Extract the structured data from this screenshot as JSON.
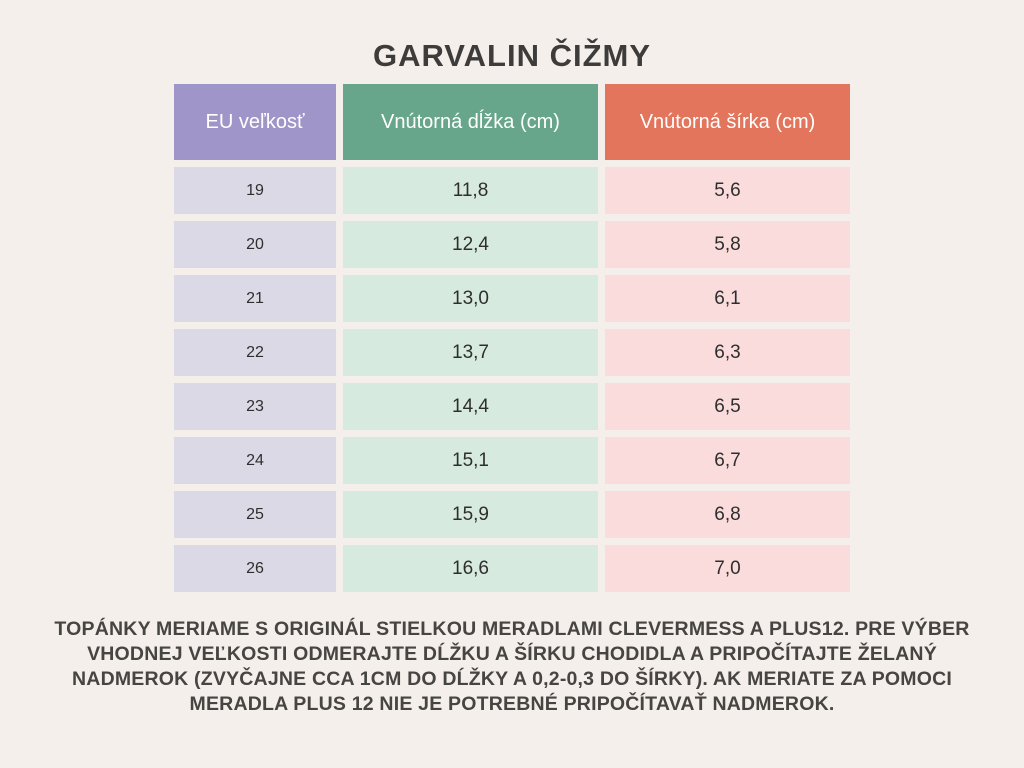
{
  "page": {
    "title": "GARVALIN ČIŽMY"
  },
  "table": {
    "headers": [
      "EU veľkosť",
      "Vnútorná dĺžka (cm)",
      "Vnútorná šírka (cm)"
    ],
    "rows": [
      [
        "19",
        "11,8",
        "5,6"
      ],
      [
        "20",
        "12,4",
        "5,8"
      ],
      [
        "21",
        "13,0",
        "6,1"
      ],
      [
        "22",
        "13,7",
        "6,3"
      ],
      [
        "23",
        "14,4",
        "6,5"
      ],
      [
        "24",
        "15,1",
        "6,7"
      ],
      [
        "25",
        "15,9",
        "6,8"
      ],
      [
        "26",
        "16,6",
        "7,0"
      ]
    ]
  },
  "footer": {
    "lines": [
      "TOPÁNKY MERIAME S ORIGINÁL STIELKOU MERADLAMI CLEVERMESS A PLUS12. PRE VÝBER",
      "VHODNEJ VEĽKOSTI ODMERAJTE DĹŽKU A ŠÍRKU CHODIDLA A PRIPOČÍTAJTE ŽELANÝ",
      "NADMEROK (ZVYČAJNE CCA 1CM DO DĹŽKY A 0,2-0,3 DO ŠÍRKY). AK MERIATE ZA POMOCI",
      "MERADLA PLUS 12 NIE JE POTREBNÉ PRIPOČÍTAVAŤ NADMEROK."
    ]
  },
  "colors": {
    "background": "#f4efea",
    "header_size": "#9f95c8",
    "header_length": "#68a68b",
    "header_width": "#e2755c",
    "row_size": "#dcd9e6",
    "row_length": "#d6eadf",
    "row_width": "#fbdcdd",
    "title_text": "#3d3c3b",
    "header_text": "#ffffff",
    "cell_text": "#2e2e2e",
    "footer_text": "#474542"
  },
  "chart_data": {
    "type": "table",
    "title": "GARVALIN ČIŽMY",
    "columns": [
      "EU veľkosť",
      "Vnútorná dĺžka (cm)",
      "Vnútorná šírka (cm)"
    ],
    "rows": [
      [
        "19",
        "11,8",
        "5,6"
      ],
      [
        "20",
        "12,4",
        "5,8"
      ],
      [
        "21",
        "13,0",
        "6,1"
      ],
      [
        "22",
        "13,7",
        "6,3"
      ],
      [
        "23",
        "14,4",
        "6,5"
      ],
      [
        "24",
        "15,1",
        "6,7"
      ],
      [
        "25",
        "15,9",
        "6,8"
      ],
      [
        "26",
        "16,6",
        "7,0"
      ]
    ],
    "footnote": "TOPÁNKY MERIAME S ORIGINÁL STIELKOU MERADLAMI CLEVERMESS A PLUS12. PRE VÝBER VHODNEJ VEĽKOSTI ODMERAJTE DĹŽKU A ŠÍRKU CHODIDLA A PRIPOČÍTAJTE ŽELANÝ NADMEROK (ZVYČAJNE CCA 1CM DO DĹŽKY A 0,2-0,3 DO ŠÍRKY). AK MERIATE ZA POMOCI MERADLA PLUS 12 NIE JE POTREBNÉ PRIPOČÍTAVAŤ NADMEROK."
  }
}
